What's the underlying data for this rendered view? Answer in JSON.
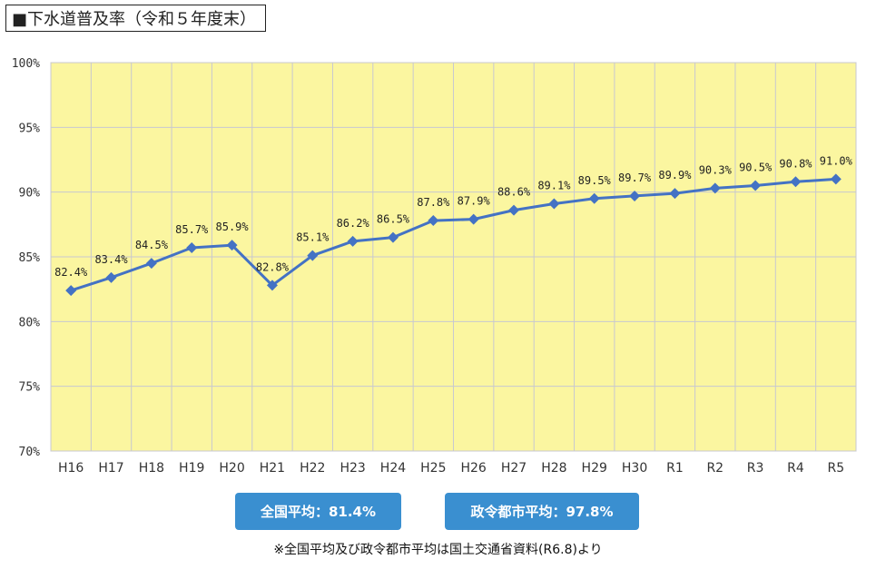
{
  "title": "■下水道普及率（令和５年度末）",
  "chart_data": {
    "type": "line",
    "categories": [
      "H16",
      "H17",
      "H18",
      "H19",
      "H20",
      "H21",
      "H22",
      "H23",
      "H24",
      "H25",
      "H26",
      "H27",
      "H28",
      "H29",
      "H30",
      "R1",
      "R2",
      "R3",
      "R4",
      "R5"
    ],
    "series": [
      {
        "values": [
          82.4,
          83.4,
          84.5,
          85.7,
          85.9,
          82.8,
          85.1,
          86.2,
          86.5,
          87.8,
          87.9,
          88.6,
          89.1,
          89.5,
          89.7,
          89.9,
          90.3,
          90.5,
          90.8,
          91.0
        ]
      }
    ],
    "data_labels": [
      "82.4%",
      "83.4%",
      "84.5%",
      "85.7%",
      "85.9%",
      "82.8%",
      "85.1%",
      "86.2%",
      "86.5%",
      "87.8%",
      "87.9%",
      "88.6%",
      "89.1%",
      "89.5%",
      "89.7%",
      "89.9%",
      "90.3%",
      "90.5%",
      "90.8%",
      "91.0%"
    ],
    "y_ticks": [
      70,
      75,
      80,
      85,
      90,
      95,
      100
    ],
    "y_tick_labels": [
      "70%",
      "75%",
      "80%",
      "85%",
      "90%",
      "95%",
      "100%"
    ],
    "ylim": [
      70,
      100
    ],
    "grid": true,
    "legend": "none",
    "plot_background": "#fbf6a0",
    "grid_color": "#c8c8d0",
    "line_color": "#4472c4"
  },
  "badges": {
    "national": "全国平均：81.4%",
    "cities": "政令都市平均：97.8%",
    "color": "#3a8fd0"
  },
  "footnote": "※全国平均及び政令都市平均は国土交通省資料(R6.8)より"
}
